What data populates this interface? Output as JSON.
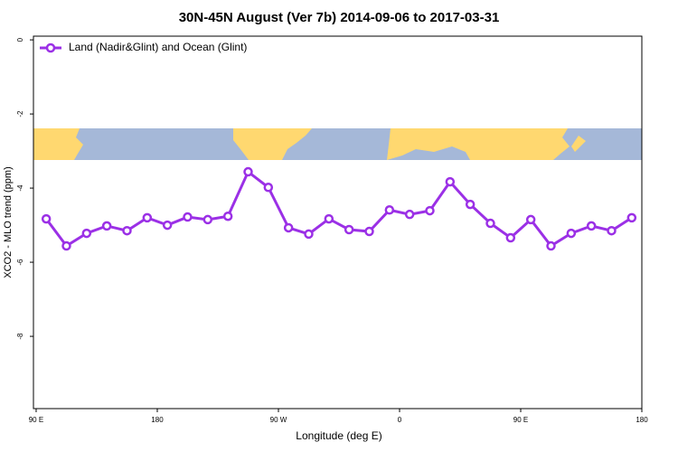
{
  "chart_data": {
    "type": "line",
    "title": "30N-45N August (Ver 7b)   2014-09-06 to 2017-03-31",
    "x_label": "Longitude (deg E)",
    "y_label": "XCO2 - MLO trend (ppm)",
    "x": [
      97.5,
      112.5,
      127.5,
      142.5,
      157.5,
      172.5,
      187.5,
      202.5,
      217.5,
      232.5,
      247.5,
      262.5,
      277.5,
      292.5,
      307.5,
      322.5,
      337.5,
      352.5,
      367.5,
      382.5,
      397.5,
      412.5,
      427.5,
      442.5,
      457.5,
      472.5,
      487.5,
      502.5,
      517.5,
      532.5
    ],
    "series": [
      {
        "name": "Land (Nadir&Glint) and Ocean (Glint)",
        "color": "#9b30e6",
        "values": [
          -4.83,
          -5.56,
          -5.22,
          -5.02,
          -5.15,
          -4.8,
          -5.0,
          -4.78,
          -4.85,
          -4.76,
          -3.56,
          -3.98,
          -5.07,
          -5.24,
          -4.83,
          -5.12,
          -5.17,
          -4.59,
          -4.71,
          -4.61,
          -3.83,
          -4.44,
          -4.95,
          -5.34,
          -4.85,
          -5.56,
          -5.22,
          -5.02,
          -5.15,
          -4.8
        ]
      }
    ],
    "xlim": [
      88,
      540
    ],
    "ylim": [
      -9.95,
      0.1
    ],
    "xticks": [
      {
        "value": 90,
        "label": "90 E"
      },
      180,
      {
        "value": 270,
        "label": "90 W"
      },
      {
        "value": 360,
        "label": "0"
      },
      {
        "value": 450,
        "label": "90 E"
      },
      {
        "value": 540,
        "label": "180"
      }
    ],
    "yticks": [
      0,
      -2,
      -4,
      -6,
      -8
    ],
    "legend_position": "top-left"
  }
}
